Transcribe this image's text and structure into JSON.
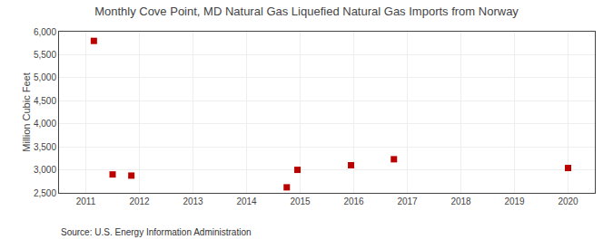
{
  "chart_data": {
    "type": "scatter",
    "title": "Monthly Cove Point, MD Natural Gas Liquefied Natural Gas Imports from Norway",
    "ylabel": "Million Cubic Feet",
    "annotations": [
      "Source: U.S. Energy Information Administration"
    ],
    "x": [
      2011.15,
      2011.5,
      2011.85,
      2014.75,
      2014.95,
      2015.95,
      2016.75,
      2020.0
    ],
    "values": [
      5800,
      2900,
      2875,
      2620,
      3000,
      3100,
      3230,
      3040
    ],
    "color": "#bb0000",
    "marker": "square",
    "xlim": [
      2010.5,
      2020.5
    ],
    "ylim": [
      2500,
      6000
    ],
    "xticks": [
      2011,
      2012,
      2013,
      2014,
      2015,
      2016,
      2017,
      2018,
      2019,
      2020
    ],
    "yticks": [
      {
        "value": 2500,
        "label": "2,500"
      },
      {
        "value": 3000,
        "label": "3,000"
      },
      {
        "value": 3500,
        "label": "3,500"
      },
      {
        "value": 4000,
        "label": "4,000"
      },
      {
        "value": 4500,
        "label": "4,500"
      },
      {
        "value": 5000,
        "label": "5,000"
      },
      {
        "value": 5500,
        "label": "5,500"
      },
      {
        "value": 6000,
        "label": "6,000"
      }
    ],
    "grid": true
  }
}
